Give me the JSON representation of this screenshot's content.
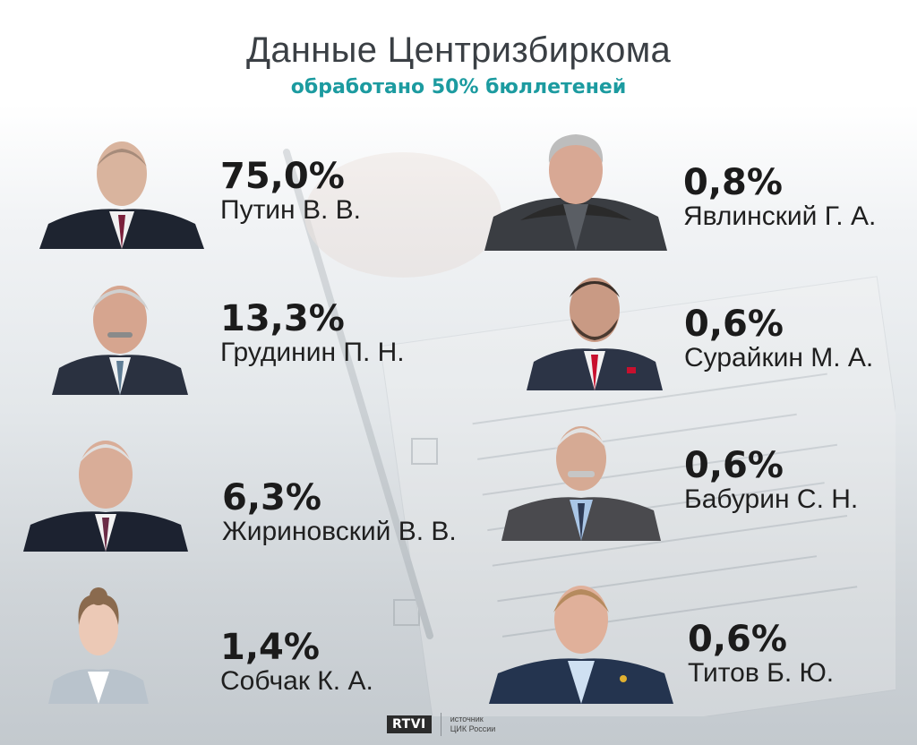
{
  "header": {
    "title": "Данные Центризбиркома",
    "subtitle": "обработано 50% бюллетеней"
  },
  "candidates_left": [
    {
      "percent": "75,0%",
      "name": "Путин В. В.",
      "tie": "#7a1f3a"
    },
    {
      "percent": "13,3%",
      "name": "Грудинин П. Н.",
      "tie": "#5f7d95"
    },
    {
      "percent": "6,3%",
      "name": "Жириновский В. В.",
      "tie": "#6b2b45"
    },
    {
      "percent": "1,4%",
      "name": "Собчак К. А.",
      "tie": "#ffffff"
    }
  ],
  "candidates_right": [
    {
      "percent": "0,8%",
      "name": "Явлинский Г. А.",
      "tie": "#555a60"
    },
    {
      "percent": "0,6%",
      "name": "Сурайкин М. А.",
      "tie": "#c8102e"
    },
    {
      "percent": "0,6%",
      "name": "Бабурин С. Н.",
      "tie": "#2d3a55"
    },
    {
      "percent": "0,6%",
      "name": "Титов Б. Ю.",
      "tie": "#ffffff"
    }
  ],
  "footer": {
    "logo": "RTVI",
    "source_line1": "источник",
    "source_line2": "ЦИК России"
  }
}
